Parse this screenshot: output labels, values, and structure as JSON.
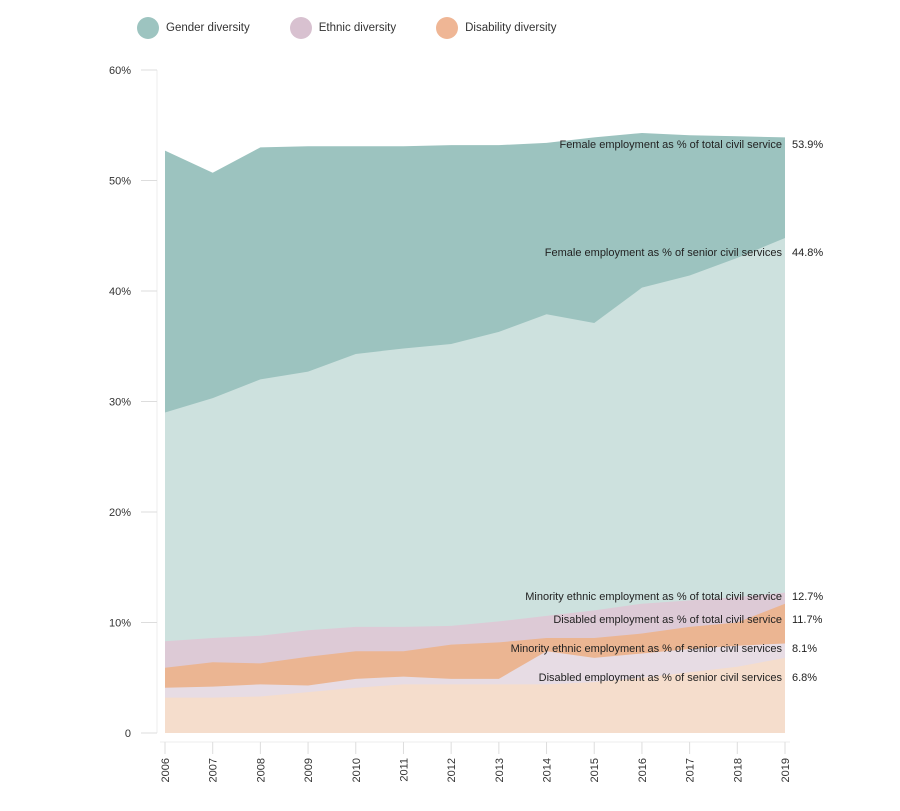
{
  "legend": [
    {
      "label": "Gender diversity",
      "color": "#9dc4c0"
    },
    {
      "label": "Ethnic diversity",
      "color": "#d8c1d0"
    },
    {
      "label": "Disability diversity",
      "color": "#efb695"
    }
  ],
  "chart_data": {
    "type": "area",
    "title": "",
    "xlabel": "",
    "ylabel": "",
    "ylim": [
      0,
      60
    ],
    "yticks": [
      0,
      10,
      20,
      30,
      40,
      50,
      60
    ],
    "ytick_labels": [
      "0",
      "10%",
      "20%",
      "30%",
      "40%",
      "50%",
      "60%"
    ],
    "grid": false,
    "legend_position": "top-left",
    "x": [
      "2006",
      "2007",
      "2008",
      "2009",
      "2010",
      "2011",
      "2012",
      "2013",
      "2014",
      "2015",
      "2016",
      "2017",
      "2018",
      "2019"
    ],
    "series": [
      {
        "name": "Female employment as % of total civil service",
        "group": "Gender diversity",
        "color": "#9cc3bf",
        "end_label": "53.9%",
        "values": [
          52.7,
          50.7,
          53.0,
          53.1,
          53.1,
          53.1,
          53.2,
          53.2,
          53.4,
          53.9,
          54.3,
          54.1,
          54.0,
          53.9
        ]
      },
      {
        "name": "Female employment as % of senior civil services",
        "group": "Gender diversity",
        "color": "#cde1de",
        "end_label": "44.8%",
        "values": [
          29.0,
          30.3,
          32.0,
          32.7,
          34.3,
          34.8,
          35.2,
          36.3,
          37.9,
          37.1,
          40.3,
          41.4,
          43.0,
          44.8
        ]
      },
      {
        "name": "Minority ethnic employment as % of total civil service",
        "group": "Ethnic diversity",
        "color": "#ddcad6",
        "end_label": "12.7%",
        "values": [
          8.3,
          8.6,
          8.8,
          9.3,
          9.6,
          9.6,
          9.7,
          10.1,
          10.6,
          11.1,
          11.7,
          12.0,
          12.3,
          12.7
        ]
      },
      {
        "name": "Disabled employment as % of total civil service",
        "group": "Disability diversity",
        "color": "#ebb592",
        "end_label": "11.7%",
        "values": [
          5.9,
          6.4,
          6.3,
          6.9,
          7.4,
          7.4,
          8.0,
          8.2,
          8.6,
          8.6,
          9.0,
          9.6,
          10.0,
          11.7
        ]
      },
      {
        "name": "Minority ethnic employment as % of senior civil services",
        "group": "Ethnic diversity",
        "color": "#e7dce4",
        "end_label": "8.1%",
        "values": [
          4.1,
          4.2,
          4.4,
          4.3,
          4.9,
          5.1,
          4.9,
          4.9,
          7.4,
          6.8,
          7.2,
          7.6,
          7.9,
          8.1
        ]
      },
      {
        "name": "Disabled employment as % of senior civil services",
        "group": "Disability diversity",
        "color": "#f5ddcc",
        "end_label": "6.8%",
        "values": [
          3.2,
          3.2,
          3.3,
          3.7,
          4.1,
          4.4,
          4.4,
          4.4,
          4.4,
          4.6,
          5.0,
          5.5,
          6.0,
          6.8
        ]
      }
    ]
  }
}
